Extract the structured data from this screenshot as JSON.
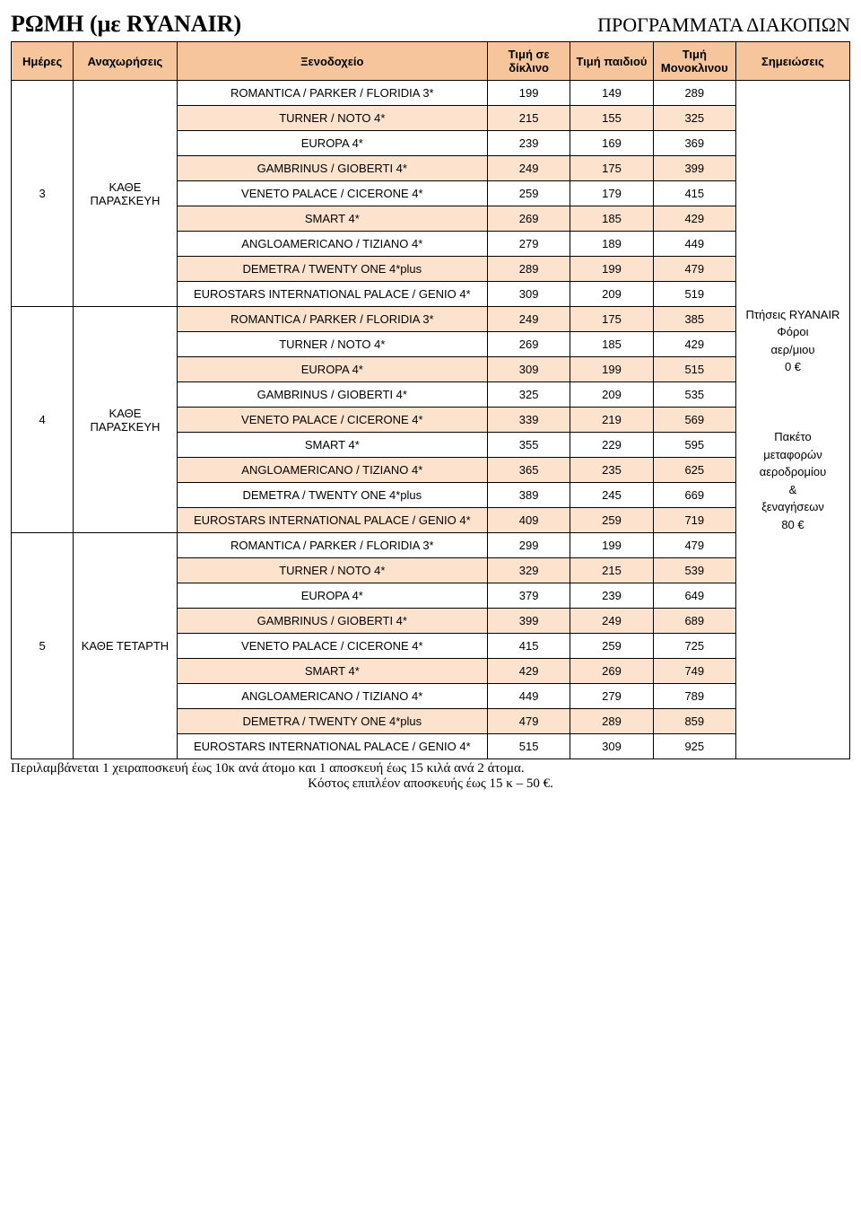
{
  "title_left": "ΡΩΜΗ (με RYANAIR)",
  "title_right": "ΠΡΟΓΡΑΜΜΑΤΑ ΔΙΑΚΟΠΩΝ",
  "columns": {
    "days": "Ημέρες",
    "departures": "Αναχωρήσεις",
    "hotel": "Ξενοδοχείο",
    "price_dikline": "Τιμή σε δίκλινο",
    "price_child": "Τιμή παιδιού",
    "price_single": "Τιμή Μονοκλινου",
    "notes": "Σημειώσεις"
  },
  "groups": [
    {
      "days": "3",
      "departures": "ΚΑΘΕ ΠΑΡΑΣΚΕΥΗ",
      "rows": [
        {
          "hotel": "ROMANTICA / PARKER / FLORIDIA 3*",
          "p1": "199",
          "p2": "149",
          "p3": "289",
          "peach": false
        },
        {
          "hotel": "TURNER / NOTO 4*",
          "p1": "215",
          "p2": "155",
          "p3": "325",
          "peach": true
        },
        {
          "hotel": "EUROPA 4*",
          "p1": "239",
          "p2": "169",
          "p3": "369",
          "peach": false
        },
        {
          "hotel": "GAMBRINUS / GIOBERTI 4*",
          "p1": "249",
          "p2": "175",
          "p3": "399",
          "peach": true
        },
        {
          "hotel": "VENETO PALACE / CICERONE 4*",
          "p1": "259",
          "p2": "179",
          "p3": "415",
          "peach": false
        },
        {
          "hotel": "SMART 4*",
          "p1": "269",
          "p2": "185",
          "p3": "429",
          "peach": true
        },
        {
          "hotel": "ANGLOAMERICANO / TIZIANO 4*",
          "p1": "279",
          "p2": "189",
          "p3": "449",
          "peach": false
        },
        {
          "hotel": "DEMETRA / TWENTY ONE 4*plus",
          "p1": "289",
          "p2": "199",
          "p3": "479",
          "peach": true
        },
        {
          "hotel": "EUROSTARS INTERNATIONAL PALACE / GENIO 4*",
          "p1": "309",
          "p2": "209",
          "p3": "519",
          "peach": false
        }
      ]
    },
    {
      "days": "4",
      "departures": "ΚΑΘΕ ΠΑΡΑΣΚΕΥΗ",
      "rows": [
        {
          "hotel": "ROMANTICA / PARKER / FLORIDIA 3*",
          "p1": "249",
          "p2": "175",
          "p3": "385",
          "peach": true
        },
        {
          "hotel": "TURNER / NOTO 4*",
          "p1": "269",
          "p2": "185",
          "p3": "429",
          "peach": false
        },
        {
          "hotel": "EUROPA 4*",
          "p1": "309",
          "p2": "199",
          "p3": "515",
          "peach": true
        },
        {
          "hotel": "GAMBRINUS / GIOBERTI 4*",
          "p1": "325",
          "p2": "209",
          "p3": "535",
          "peach": false
        },
        {
          "hotel": "VENETO PALACE / CICERONE 4*",
          "p1": "339",
          "p2": "219",
          "p3": "569",
          "peach": true
        },
        {
          "hotel": "SMART 4*",
          "p1": "355",
          "p2": "229",
          "p3": "595",
          "peach": false
        },
        {
          "hotel": "ANGLOAMERICANO / TIZIANO 4*",
          "p1": "365",
          "p2": "235",
          "p3": "625",
          "peach": true
        },
        {
          "hotel": "DEMETRA / TWENTY ONE 4*plus",
          "p1": "389",
          "p2": "245",
          "p3": "669",
          "peach": false
        },
        {
          "hotel": "EUROSTARS INTERNATIONAL PALACE / GENIO 4*",
          "p1": "409",
          "p2": "259",
          "p3": "719",
          "peach": true
        }
      ]
    },
    {
      "days": "5",
      "departures": "ΚΑΘΕ ΤΕΤΑΡΤΗ",
      "rows": [
        {
          "hotel": "ROMANTICA / PARKER / FLORIDIA 3*",
          "p1": "299",
          "p2": "199",
          "p3": "479",
          "peach": false
        },
        {
          "hotel": "TURNER / NOTO 4*",
          "p1": "329",
          "p2": "215",
          "p3": "539",
          "peach": true
        },
        {
          "hotel": "EUROPA 4*",
          "p1": "379",
          "p2": "239",
          "p3": "649",
          "peach": false
        },
        {
          "hotel": "GAMBRINUS / GIOBERTI 4*",
          "p1": "399",
          "p2": "249",
          "p3": "689",
          "peach": true
        },
        {
          "hotel": "VENETO PALACE / CICERONE 4*",
          "p1": "415",
          "p2": "259",
          "p3": "725",
          "peach": false
        },
        {
          "hotel": "SMART 4*",
          "p1": "429",
          "p2": "269",
          "p3": "749",
          "peach": true
        },
        {
          "hotel": "ANGLOAMERICANO / TIZIANO 4*",
          "p1": "449",
          "p2": "279",
          "p3": "789",
          "peach": false
        },
        {
          "hotel": "DEMETRA / TWENTY ONE 4*plus",
          "p1": "479",
          "p2": "289",
          "p3": "859",
          "peach": true
        },
        {
          "hotel": "EUROSTARS INTERNATIONAL PALACE / GENIO 4*",
          "p1": "515",
          "p2": "309",
          "p3": "925",
          "peach": false
        }
      ]
    }
  ],
  "notes": {
    "block1_line1": "Πτήσεις RYANAIR",
    "block1_line2": "Φόροι",
    "block1_line3": "αερ/μιου",
    "block1_line4": "0 €",
    "block2_line1": "Πακέτο",
    "block2_line2": "μεταφορών",
    "block2_line3": "αεροδρομίου",
    "block2_line4": "&",
    "block2_line5": "ξεναγήσεων",
    "block2_line6": "80 €"
  },
  "footer1": "Περιλαμβάνεται 1 χειραποσκευή έως 10κ ανά άτομο και 1 αποσκευή έως 15 κιλά ανά 2 άτομα.",
  "footer2": "Κόστος επιπλέον αποσκευής έως 15 κ – 50 €.",
  "colors": {
    "header_bg": "#f7c59c",
    "peach_bg": "#fde3cd",
    "border": "#000000",
    "page_bg": "#ffffff"
  }
}
